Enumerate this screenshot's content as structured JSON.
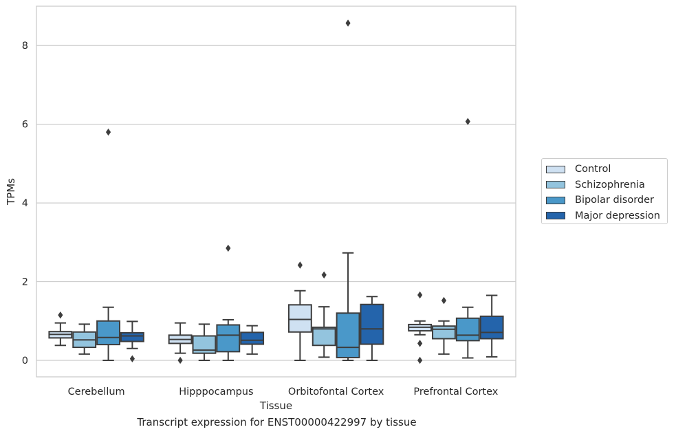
{
  "chart_data": {
    "type": "box",
    "title": "Transcript expression for ENST00000422997 by tissue",
    "xlabel": "Tissue",
    "ylabel": "TPMs",
    "ylim": [
      -0.42,
      9.0
    ],
    "yticks": [
      0,
      2,
      4,
      6,
      8
    ],
    "grid": "horizontal",
    "legend_position": "right",
    "categories": [
      "Cerebellum",
      "Hipppocampus",
      "Orbitofontal Cortex",
      "Prefrontal Cortex"
    ],
    "series": [
      {
        "name": "Control",
        "color": "#cfe1f2",
        "boxes": [
          {
            "whislo": 0.38,
            "q1": 0.57,
            "med": 0.66,
            "q3": 0.73,
            "whishi": 0.95,
            "fliers": [
              1.15
            ]
          },
          {
            "whislo": 0.18,
            "q1": 0.43,
            "med": 0.53,
            "q3": 0.64,
            "whishi": 0.95,
            "fliers": [
              0.0
            ]
          },
          {
            "whislo": 0.0,
            "q1": 0.72,
            "med": 1.04,
            "q3": 1.41,
            "whishi": 1.77,
            "fliers": [
              2.42
            ]
          },
          {
            "whislo": 0.65,
            "q1": 0.75,
            "med": 0.84,
            "q3": 0.91,
            "whishi": 1.0,
            "fliers": [
              1.66,
              0.43,
              0.0
            ]
          }
        ]
      },
      {
        "name": "Schizophrenia",
        "color": "#93c4de",
        "boxes": [
          {
            "whislo": 0.16,
            "q1": 0.33,
            "med": 0.52,
            "q3": 0.72,
            "whishi": 0.92,
            "fliers": []
          },
          {
            "whislo": 0.0,
            "q1": 0.18,
            "med": 0.26,
            "q3": 0.62,
            "whishi": 0.92,
            "fliers": []
          },
          {
            "whislo": 0.08,
            "q1": 0.38,
            "med": 0.8,
            "q3": 0.84,
            "whishi": 1.36,
            "fliers": [
              2.17
            ]
          },
          {
            "whislo": 0.16,
            "q1": 0.55,
            "med": 0.79,
            "q3": 0.87,
            "whishi": 1.0,
            "fliers": [
              1.52
            ]
          }
        ]
      },
      {
        "name": "Bipolar disorder",
        "color": "#4a98c9",
        "boxes": [
          {
            "whislo": 0.0,
            "q1": 0.4,
            "med": 0.58,
            "q3": 1.0,
            "whishi": 1.35,
            "fliers": [
              5.8
            ]
          },
          {
            "whislo": 0.0,
            "q1": 0.22,
            "med": 0.64,
            "q3": 0.9,
            "whishi": 1.03,
            "fliers": [
              2.85
            ]
          },
          {
            "whislo": 0.0,
            "q1": 0.07,
            "med": 0.33,
            "q3": 1.2,
            "whishi": 2.73,
            "fliers": [
              8.57
            ]
          },
          {
            "whislo": 0.06,
            "q1": 0.5,
            "med": 0.64,
            "q3": 1.07,
            "whishi": 1.35,
            "fliers": [
              6.07
            ]
          }
        ]
      },
      {
        "name": "Major depression",
        "color": "#2464ab",
        "boxes": [
          {
            "whislo": 0.3,
            "q1": 0.48,
            "med": 0.62,
            "q3": 0.7,
            "whishi": 0.99,
            "fliers": [
              0.04
            ]
          },
          {
            "whislo": 0.16,
            "q1": 0.41,
            "med": 0.51,
            "q3": 0.71,
            "whishi": 0.88,
            "fliers": []
          },
          {
            "whislo": 0.0,
            "q1": 0.41,
            "med": 0.8,
            "q3": 1.42,
            "whishi": 1.62,
            "fliers": []
          },
          {
            "whislo": 0.09,
            "q1": 0.55,
            "med": 0.71,
            "q3": 1.12,
            "whishi": 1.65,
            "fliers": []
          }
        ]
      }
    ]
  }
}
